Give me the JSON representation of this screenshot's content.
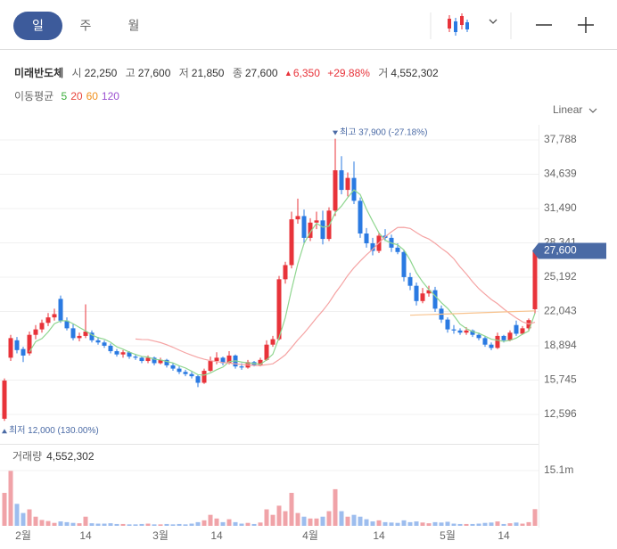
{
  "header": {
    "tabs": [
      "일",
      "주",
      "월"
    ]
  },
  "info": {
    "name": "미래반도체",
    "items": [
      {
        "label": "시",
        "value": "22,250"
      },
      {
        "label": "고",
        "value": "27,600"
      },
      {
        "label": "저",
        "value": "21,850"
      },
      {
        "label": "종",
        "value": "27,600"
      }
    ],
    "change": "6,350",
    "change_pct": "+29.88%",
    "volume": {
      "label": "거",
      "value": "4,552,302"
    }
  },
  "chart_data": {
    "type": "candlestick",
    "scale_label": "Linear",
    "categories": [
      null,
      null,
      null,
      "2월",
      null,
      null,
      null,
      null,
      null,
      null,
      null,
      null,
      null,
      "14",
      null,
      null,
      null,
      null,
      null,
      null,
      null,
      null,
      null,
      null,
      null,
      "3월",
      null,
      null,
      null,
      null,
      null,
      null,
      null,
      null,
      "14",
      null,
      null,
      null,
      null,
      null,
      null,
      null,
      null,
      null,
      null,
      null,
      null,
      null,
      null,
      "4월",
      null,
      null,
      null,
      null,
      null,
      null,
      null,
      null,
      null,
      null,
      "14",
      null,
      null,
      null,
      null,
      null,
      null,
      null,
      null,
      null,
      null,
      "5월",
      null,
      null,
      null,
      null,
      null,
      null,
      null,
      null,
      "14",
      null,
      null,
      null,
      null,
      null
    ],
    "open": [
      12200,
      17800,
      19400,
      18600,
      18200,
      19900,
      20400,
      21000,
      21500,
      23200,
      21200,
      20500,
      19600,
      19800,
      20100,
      19400,
      19200,
      18900,
      18400,
      18100,
      18300,
      17900,
      17800,
      17500,
      17800,
      17300,
      17600,
      17100,
      16800,
      16500,
      16300,
      16100,
      15500,
      16600,
      17500,
      17800,
      17300,
      18000,
      17000,
      16900,
      17400,
      17100,
      17600,
      19000,
      19500,
      25000,
      26300,
      30500,
      30800,
      28800,
      30200,
      30400,
      28700,
      31300,
      35000,
      33200,
      34300,
      32200,
      29200,
      28300,
      27600,
      29000,
      28800,
      27900,
      27500,
      25200,
      24400,
      23000,
      23700,
      24000,
      22300,
      21300,
      20400,
      20300,
      20100,
      20300,
      19900,
      19600,
      19000,
      18700,
      19800,
      19400,
      20800,
      20000,
      20500,
      22250
    ],
    "high": [
      15900,
      19900,
      19700,
      18800,
      20200,
      20800,
      21300,
      21900,
      22300,
      23500,
      21500,
      20900,
      20100,
      22700,
      20300,
      19700,
      19400,
      19100,
      18600,
      18500,
      18400,
      18100,
      17900,
      18000,
      17900,
      17800,
      17700,
      17300,
      17000,
      16700,
      16500,
      16200,
      16800,
      17900,
      18300,
      17900,
      18400,
      18100,
      17300,
      17600,
      17500,
      17800,
      19400,
      19800,
      25300,
      26600,
      31200,
      32400,
      31400,
      30600,
      31200,
      31300,
      31600,
      37900,
      36300,
      34800,
      35800,
      32500,
      29700,
      28800,
      29300,
      29600,
      29100,
      28300,
      27700,
      25600,
      24700,
      24200,
      24400,
      24300,
      22600,
      21500,
      20800,
      20500,
      20600,
      20400,
      20100,
      19800,
      19200,
      20100,
      19900,
      20300,
      21200,
      20700,
      21400,
      27600
    ],
    "low": [
      12000,
      17500,
      18200,
      17400,
      18000,
      19500,
      20100,
      20700,
      21200,
      21000,
      20300,
      19400,
      19300,
      19600,
      19200,
      19000,
      18700,
      18200,
      17900,
      17800,
      17700,
      17600,
      17300,
      17300,
      17100,
      17200,
      16900,
      16600,
      16300,
      16100,
      15900,
      15100,
      15400,
      16500,
      17200,
      17100,
      17200,
      16800,
      16700,
      16800,
      17000,
      17000,
      17500,
      18800,
      19400,
      24600,
      26000,
      30100,
      28200,
      28500,
      29600,
      28200,
      28500,
      30800,
      32800,
      32600,
      31900,
      28800,
      27900,
      27200,
      27400,
      28500,
      27500,
      27300,
      24800,
      24000,
      22600,
      22800,
      23400,
      22000,
      21000,
      20100,
      20000,
      19900,
      19900,
      19700,
      19400,
      18800,
      18500,
      18600,
      19200,
      19300,
      19800,
      19900,
      20300,
      21850
    ],
    "close": [
      15700,
      19600,
      18500,
      18000,
      19900,
      20400,
      21000,
      21500,
      21800,
      21200,
      20500,
      19600,
      19800,
      20200,
      19400,
      19200,
      18900,
      18400,
      18100,
      18300,
      17900,
      17800,
      17500,
      17800,
      17300,
      17600,
      17100,
      16800,
      16500,
      16300,
      16100,
      15500,
      16600,
      17500,
      17800,
      17300,
      18000,
      17000,
      16900,
      17400,
      17100,
      17600,
      19000,
      19500,
      25000,
      26300,
      30500,
      30800,
      28800,
      30200,
      30400,
      28700,
      31300,
      35000,
      33200,
      34300,
      32200,
      29200,
      28300,
      27600,
      29000,
      28800,
      27900,
      27500,
      25200,
      24400,
      23000,
      23700,
      24000,
      22300,
      21300,
      20400,
      20300,
      20100,
      20300,
      19900,
      19600,
      19000,
      18700,
      19800,
      19400,
      20100,
      20000,
      20500,
      21250,
      27600
    ],
    "volume": [
      9000000,
      15000000,
      6000000,
      3500000,
      4500000,
      2500000,
      1600000,
      1300000,
      800000,
      1200000,
      1000000,
      800000,
      700000,
      2500000,
      700000,
      600000,
      600000,
      700000,
      500000,
      500000,
      400000,
      400000,
      500000,
      600000,
      400000,
      400000,
      500000,
      400000,
      500000,
      400000,
      600000,
      1000000,
      1500000,
      3000000,
      2000000,
      1000000,
      1800000,
      1000000,
      600000,
      800000,
      500000,
      900000,
      4500000,
      3000000,
      5500000,
      4000000,
      9000000,
      3500000,
      2500000,
      2000000,
      2000000,
      2500000,
      4000000,
      10000000,
      4000000,
      2500000,
      3000000,
      2500000,
      1800000,
      1200000,
      1500000,
      1000000,
      900000,
      800000,
      1500000,
      1000000,
      1200000,
      900000,
      700000,
      1000000,
      900000,
      1100000,
      600000,
      500000,
      500000,
      500000,
      600000,
      800000,
      900000,
      1200000,
      500000,
      700000,
      900000,
      600000,
      1000000,
      4552302
    ],
    "up_color": "#e8333a",
    "down_color": "#2a7ae2",
    "vol_up_color": "#f0a3a8",
    "vol_down_color": "#9dbdee",
    "ma_title": "이동평균",
    "ma": [
      {
        "name": 5,
        "color": "#3cae3c",
        "line_color": "#8fd68f",
        "values": [
          null,
          null,
          null,
          null,
          18340,
          19280,
          19560,
          20160,
          20920,
          21180,
          21200,
          20920,
          20580,
          20260,
          19900,
          19640,
          19500,
          19220,
          18800,
          18580,
          18320,
          18100,
          17920,
          17860,
          17660,
          17600,
          17460,
          17320,
          17060,
          16860,
          16560,
          16240,
          16200,
          16400,
          16700,
          16940,
          17440,
          17520,
          17400,
          17320,
          17280,
          17200,
          17600,
          18120,
          19640,
          21480,
          24060,
          26420,
          28280,
          29320,
          30140,
          29780,
          29880,
          31120,
          31720,
          32500,
          33200,
          32780,
          31440,
          30320,
          29260,
          28580,
          28320,
          28160,
          27680,
          26760,
          25600,
          24760,
          24060,
          23480,
          22860,
          22340,
          21660,
          20880,
          20480,
          20200,
          20040,
          19780,
          19500,
          19400,
          19300,
          19400,
          19600,
          19960,
          20250,
          21890
        ]
      },
      {
        "name": 20,
        "color": "#e8453c",
        "line_color": "#f5a3a3",
        "values": [
          null,
          null,
          null,
          null,
          null,
          null,
          null,
          null,
          null,
          null,
          null,
          null,
          null,
          null,
          null,
          null,
          null,
          null,
          null,
          null,
          null,
          19520,
          19470,
          19460,
          19330,
          19190,
          18995,
          18760,
          18495,
          18250,
          18030,
          17825,
          17665,
          17530,
          17450,
          17355,
          17310,
          17240,
          17180,
          17135,
          17095,
          17085,
          17160,
          17245,
          17630,
          18065,
          18735,
          19435,
          20050,
          20745,
          21460,
          22120,
          22855,
          23730,
          24500,
          25350,
          26060,
          26670,
          27240,
          27750,
          28345,
          28905,
          29350,
          29750,
          29760,
          29665,
          29290,
          28935,
          28695,
          28300,
          27845,
          27430,
          26880,
          26135,
          25490,
          24770,
          24140,
          23630,
          23150,
          22760,
          22280,
          21845,
          21450,
          21100,
          20903,
          21060
        ]
      },
      {
        "name": 60,
        "color": "#f0901e",
        "line_color": "#f8c38e",
        "values": [
          null,
          null,
          null,
          null,
          null,
          null,
          null,
          null,
          null,
          null,
          null,
          null,
          null,
          null,
          null,
          null,
          null,
          null,
          null,
          null,
          null,
          null,
          null,
          null,
          null,
          null,
          null,
          null,
          null,
          null,
          null,
          null,
          null,
          null,
          null,
          null,
          null,
          null,
          null,
          null,
          null,
          null,
          null,
          null,
          null,
          null,
          null,
          null,
          null,
          null,
          null,
          null,
          null,
          null,
          null,
          null,
          null,
          null,
          null,
          null,
          null,
          null,
          null,
          null,
          null,
          21700,
          21720,
          21740,
          21760,
          21780,
          21800,
          21820,
          21840,
          21860,
          21880,
          21900,
          21920,
          21940,
          21960,
          21980,
          22000,
          22020,
          22040,
          22060,
          22080,
          22100
        ]
      },
      {
        "name": 120,
        "color": "#9b4fd0"
      }
    ],
    "ylim": [
      11533,
      39178
    ],
    "yticks": [
      {
        "value": 12596,
        "label": "12,596"
      },
      {
        "value": 15745,
        "label": "15,745"
      },
      {
        "value": 18894,
        "label": "18,894"
      },
      {
        "value": 22043,
        "label": "22,043"
      },
      {
        "value": 25192,
        "label": "25,192"
      },
      {
        "value": 28341,
        "label": "28,341"
      },
      {
        "value": 31490,
        "label": "31,490"
      },
      {
        "value": 34639,
        "label": "34,639"
      },
      {
        "value": 37788,
        "label": "37,788"
      }
    ],
    "price_tag": {
      "value": 27600,
      "label": "27,600"
    },
    "high_annotation": "최고 37,900 (-27.18%)",
    "low_annotation": "최저 12,000 (130.00%)",
    "volume_title": "거래량",
    "volume_value": "4,552,302",
    "vlim": [
      0,
      21900000
    ],
    "vticks": [
      {
        "value": 15100000,
        "label": "15.1m"
      }
    ],
    "grid": true
  }
}
